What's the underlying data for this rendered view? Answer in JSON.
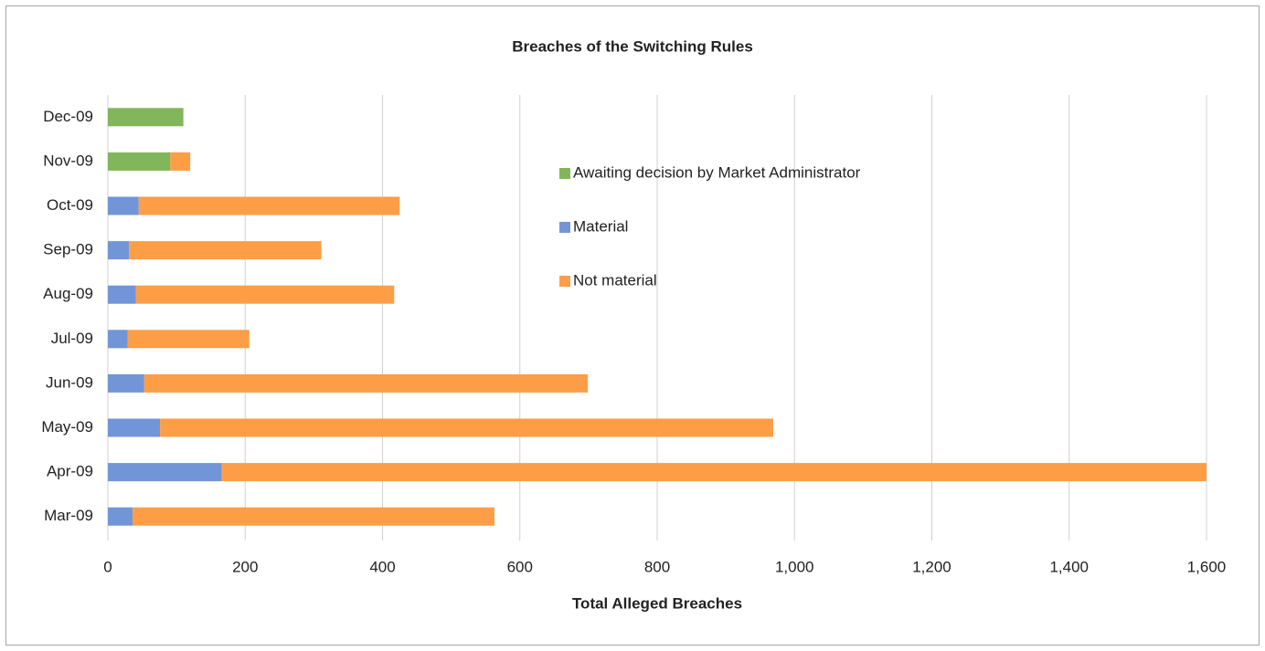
{
  "chart_data": {
    "type": "stacked_barh",
    "title": "Breaches of the Switching Rules",
    "xlabel": "Total Alleged Breaches",
    "categories": [
      "Mar-09",
      "Apr-09",
      "May-09",
      "Jun-09",
      "Jul-09",
      "Aug-09",
      "Sep-09",
      "Oct-09",
      "Nov-09",
      "Dec-09"
    ],
    "series": [
      {
        "name": "Awaiting decision by Market Administrator",
        "color": "#82b65a",
        "values": [
          0,
          0,
          0,
          0,
          0,
          0,
          0,
          0,
          91,
          110
        ]
      },
      {
        "name": "Material",
        "color": "#7295d8",
        "values": [
          36,
          166,
          76,
          53,
          29,
          41,
          31,
          45,
          0,
          0
        ]
      },
      {
        "name": "Not material",
        "color": "#fd9e47",
        "values": [
          527,
          1434,
          893,
          646,
          177,
          376,
          280,
          380,
          29,
          0
        ]
      }
    ],
    "xlim": [
      0,
      1600
    ],
    "xticks": [
      0,
      200,
      400,
      600,
      800,
      {
        "value": 1000,
        "label": "1,000"
      },
      {
        "value": 1200,
        "label": "1,200"
      },
      {
        "value": 1400,
        "label": "1,400"
      },
      {
        "value": 1600,
        "label": "1,600"
      }
    ],
    "grid": true,
    "legend": "center"
  }
}
